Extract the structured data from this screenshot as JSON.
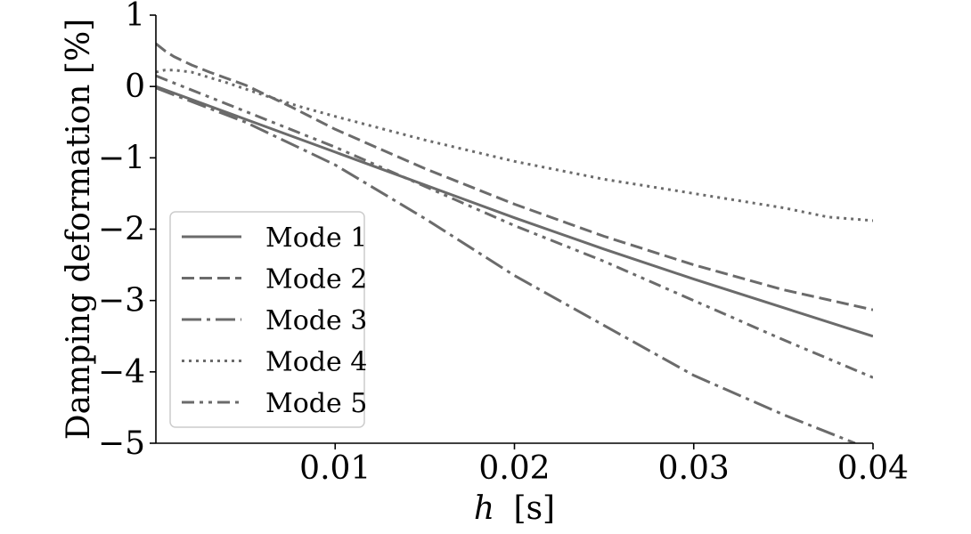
{
  "chart_data": {
    "type": "line",
    "xlabel_var": "h",
    "xlabel_unit": "[s]",
    "ylabel": "Damping deformation [%]",
    "xlim": [
      0.0,
      0.04
    ],
    "ylim": [
      -5,
      1
    ],
    "xticks": [
      0.01,
      0.02,
      0.03,
      0.04
    ],
    "xtick_labels": [
      "0.01",
      "0.02",
      "0.03",
      "0.04"
    ],
    "yticks": [
      1,
      0,
      -1,
      -2,
      -3,
      -4,
      -5
    ],
    "ytick_labels": [
      "1",
      "0",
      "−1",
      "−2",
      "−3",
      "−4",
      "−5"
    ],
    "grid": false,
    "legend_position": "lower-left",
    "line_color": "#6b6b6b",
    "series": [
      {
        "name": "Mode 1",
        "style": "solid",
        "x": [
          0.0,
          0.005,
          0.01,
          0.015,
          0.02,
          0.025,
          0.03,
          0.035,
          0.04
        ],
        "y": [
          0.0,
          -0.46,
          -0.92,
          -1.38,
          -1.84,
          -2.28,
          -2.7,
          -3.1,
          -3.5
        ]
      },
      {
        "name": "Mode 2",
        "style": "dashed",
        "x": [
          0.0,
          0.0005,
          0.001,
          0.002,
          0.003,
          0.005,
          0.0075,
          0.01,
          0.015,
          0.02,
          0.025,
          0.03,
          0.035,
          0.04
        ],
        "y": [
          0.6,
          0.5,
          0.42,
          0.3,
          0.2,
          0.02,
          -0.28,
          -0.6,
          -1.15,
          -1.65,
          -2.1,
          -2.5,
          -2.85,
          -3.13
        ]
      },
      {
        "name": "Mode 3",
        "style": "dashdot",
        "x": [
          0.0,
          0.005,
          0.01,
          0.015,
          0.02,
          0.025,
          0.03,
          0.035,
          0.039
        ],
        "y": [
          -0.02,
          -0.5,
          -1.1,
          -1.85,
          -2.65,
          -3.35,
          -4.05,
          -4.6,
          -5.0
        ]
      },
      {
        "name": "Mode 4",
        "style": "dotted",
        "x": [
          0.0,
          0.0005,
          0.001,
          0.002,
          0.004,
          0.006,
          0.008,
          0.01,
          0.015,
          0.02,
          0.025,
          0.03,
          0.035,
          0.0375,
          0.04
        ],
        "y": [
          0.2,
          0.23,
          0.23,
          0.2,
          0.05,
          -0.12,
          -0.28,
          -0.42,
          -0.75,
          -1.05,
          -1.3,
          -1.5,
          -1.7,
          -1.83,
          -1.88
        ]
      },
      {
        "name": "Mode 5",
        "style": "dashdotdot",
        "x": [
          0.0,
          0.001,
          0.002,
          0.005,
          0.01,
          0.015,
          0.02,
          0.025,
          0.03,
          0.035,
          0.04
        ],
        "y": [
          0.15,
          0.05,
          -0.05,
          -0.35,
          -0.85,
          -1.4,
          -1.95,
          -2.45,
          -3.0,
          -3.55,
          -4.08
        ]
      }
    ]
  }
}
